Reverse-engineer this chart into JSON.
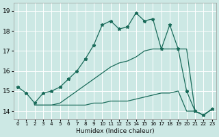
{
  "xlabel": "Humidex (Indice chaleur)",
  "bg_color": "#cce8e4",
  "grid_color": "#ffffff",
  "line_color": "#1a6b5a",
  "xlim": [
    -0.5,
    23.5
  ],
  "ylim": [
    13.6,
    19.4
  ],
  "yticks": [
    14,
    15,
    16,
    17,
    18,
    19
  ],
  "xticks": [
    0,
    1,
    2,
    3,
    4,
    5,
    6,
    7,
    8,
    9,
    10,
    11,
    12,
    13,
    14,
    15,
    16,
    17,
    18,
    19,
    20,
    21,
    22,
    23
  ],
  "series_main": {
    "x": [
      0,
      1,
      2,
      3,
      4,
      5,
      6,
      7,
      8,
      9,
      10,
      11,
      12,
      13,
      14,
      15,
      16,
      17,
      18,
      19,
      20,
      21,
      22,
      23
    ],
    "y": [
      15.2,
      14.9,
      14.4,
      14.9,
      15.0,
      15.2,
      15.6,
      16.0,
      16.6,
      17.3,
      18.3,
      18.5,
      18.1,
      18.2,
      18.9,
      18.5,
      18.6,
      17.1,
      18.3,
      17.1,
      15.0,
      14.0,
      13.8,
      14.1
    ]
  },
  "series_mid": {
    "x": [
      2,
      3,
      4,
      5,
      6,
      7,
      8,
      9,
      10,
      11,
      12,
      13,
      14,
      15,
      16,
      17,
      18,
      19,
      20,
      21,
      22,
      23
    ],
    "y": [
      14.3,
      14.3,
      14.3,
      14.4,
      14.7,
      15.0,
      15.3,
      15.6,
      15.9,
      16.2,
      16.4,
      16.5,
      16.7,
      17.0,
      17.1,
      17.1,
      17.1,
      17.1,
      17.1,
      14.0,
      13.8,
      14.1
    ]
  },
  "series_flat": {
    "x": [
      2,
      3,
      4,
      5,
      6,
      7,
      8,
      9,
      10,
      11,
      12,
      13,
      14,
      15,
      16,
      17,
      18,
      19,
      20,
      21,
      22,
      23
    ],
    "y": [
      14.3,
      14.3,
      14.3,
      14.3,
      14.3,
      14.3,
      14.3,
      14.4,
      14.4,
      14.5,
      14.5,
      14.5,
      14.6,
      14.7,
      14.8,
      14.9,
      14.9,
      15.0,
      14.0,
      14.0,
      13.8,
      14.1
    ]
  }
}
